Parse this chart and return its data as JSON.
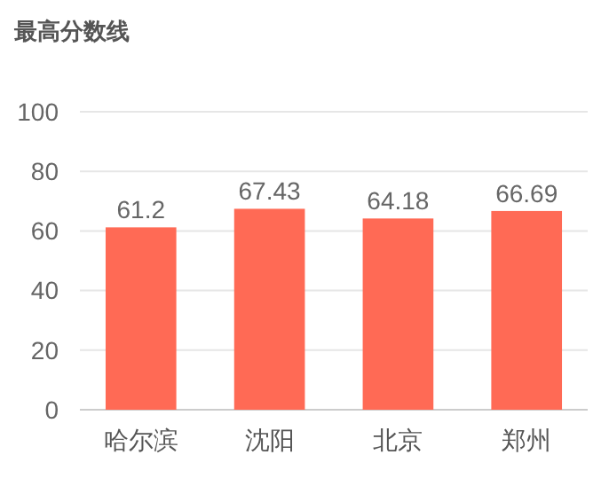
{
  "chart_data": {
    "type": "bar",
    "title": "最高分数线",
    "categories": [
      "哈尔滨",
      "沈阳",
      "北京",
      "郑州"
    ],
    "values": [
      61.2,
      67.43,
      64.18,
      66.69
    ],
    "color": "#ff6a55",
    "ylim": [
      0,
      100
    ],
    "yticks": [
      0,
      20,
      40,
      60,
      80,
      100
    ],
    "grid": "y",
    "data_labels": true
  }
}
